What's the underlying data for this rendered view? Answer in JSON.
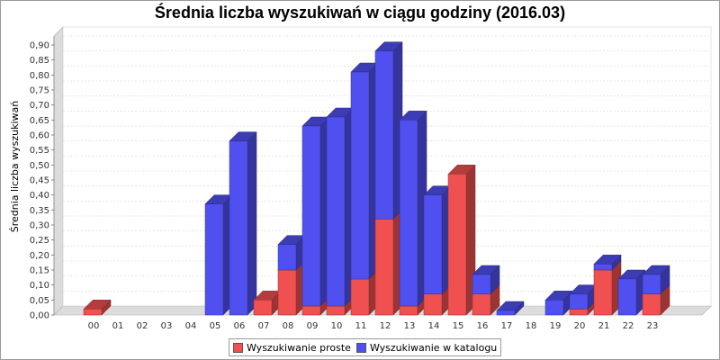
{
  "chart_data": {
    "type": "bar",
    "stacked": true,
    "three_d": true,
    "title": "Średnia liczba wyszukiwań w ciągu godziny (2016.03)",
    "xlabel": "",
    "ylabel": "Średnia liczba wyszukiwań",
    "ylim": [
      0,
      0.93
    ],
    "yticks": [
      "0,00",
      "0,05",
      "0,10",
      "0,15",
      "0,20",
      "0,25",
      "0,30",
      "0,35",
      "0,40",
      "0,45",
      "0,50",
      "0,55",
      "0,60",
      "0,65",
      "0,70",
      "0,75",
      "0,80",
      "0,85",
      "0,90"
    ],
    "grid": true,
    "legend_position": "bottom",
    "categories": [
      "00",
      "01",
      "02",
      "03",
      "04",
      "05",
      "06",
      "07",
      "08",
      "09",
      "10",
      "11",
      "12",
      "13",
      "14",
      "15",
      "16",
      "17",
      "18",
      "19",
      "20",
      "21",
      "22",
      "23"
    ],
    "series": [
      {
        "name": "Wyszukiwanie proste",
        "color": "#f05050",
        "values": [
          0.02,
          0,
          0,
          0,
          0,
          0,
          0,
          0.05,
          0.15,
          0.03,
          0.03,
          0.12,
          0.32,
          0.03,
          0.07,
          0.47,
          0.07,
          0,
          0,
          0,
          0.02,
          0.15,
          0,
          0.07
        ]
      },
      {
        "name": "Wyszukiwanie w katalogu",
        "color": "#5050f0",
        "values": [
          0,
          0,
          0,
          0,
          0,
          0.37,
          0.58,
          0,
          0.085,
          0.6,
          0.63,
          0.69,
          0.56,
          0.62,
          0.33,
          0,
          0.065,
          0.015,
          0,
          0.05,
          0.05,
          0.02,
          0.12,
          0.065
        ]
      }
    ]
  }
}
